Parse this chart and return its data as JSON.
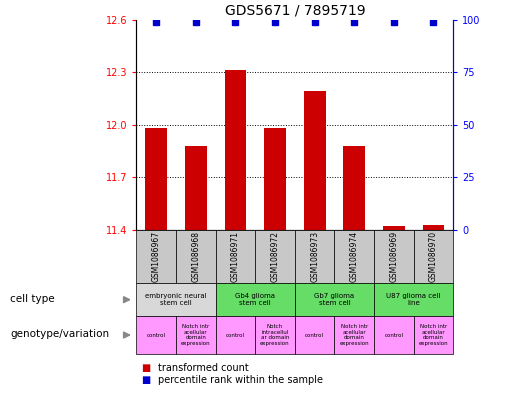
{
  "title": "GDS5671 / 7895719",
  "samples": [
    "GSM1086967",
    "GSM1086968",
    "GSM1086971",
    "GSM1086972",
    "GSM1086973",
    "GSM1086974",
    "GSM1086969",
    "GSM1086970"
  ],
  "bar_values": [
    11.98,
    11.88,
    12.31,
    11.98,
    12.19,
    11.88,
    11.42,
    11.43
  ],
  "percentile_values": [
    99,
    99,
    99,
    99,
    99,
    99,
    99,
    99
  ],
  "ylim_left": [
    11.4,
    12.6
  ],
  "ylim_right": [
    0,
    100
  ],
  "yticks_left": [
    11.4,
    11.7,
    12.0,
    12.3,
    12.6
  ],
  "yticks_right": [
    0,
    25,
    50,
    75,
    100
  ],
  "bar_color": "#cc0000",
  "percentile_color": "#0000cc",
  "cell_type_bg": "#d0d0d0",
  "chart_bg": "#ffffff",
  "cell_types": [
    {
      "label": "embryonic neural\nstem cell",
      "color": "#d8d8d8",
      "span": [
        0,
        2
      ]
    },
    {
      "label": "Gb4 glioma\nstem cell",
      "color": "#66dd66",
      "span": [
        2,
        4
      ]
    },
    {
      "label": "Gb7 glioma\nstem cell",
      "color": "#66dd66",
      "span": [
        4,
        6
      ]
    },
    {
      "label": "U87 glioma cell\nline",
      "color": "#66dd66",
      "span": [
        6,
        8
      ]
    }
  ],
  "genotypes": [
    {
      "label": "control",
      "span": [
        0,
        1
      ]
    },
    {
      "label": "Notch intr\nacellular\ndomain\nexpression",
      "span": [
        1,
        2
      ]
    },
    {
      "label": "control",
      "span": [
        2,
        3
      ]
    },
    {
      "label": "Notch\nintracellul\nar domain\nexpression",
      "span": [
        3,
        4
      ]
    },
    {
      "label": "control",
      "span": [
        4,
        5
      ]
    },
    {
      "label": "Notch intr\nacellular\ndomain\nexpression",
      "span": [
        5,
        6
      ]
    },
    {
      "label": "control",
      "span": [
        6,
        7
      ]
    },
    {
      "label": "Notch intr\nacellular\ndomain\nexpression",
      "span": [
        7,
        8
      ]
    }
  ],
  "geno_color": "#ff99ff",
  "sample_box_color": "#c8c8c8",
  "fig_width": 5.15,
  "fig_height": 3.93,
  "dpi": 100
}
